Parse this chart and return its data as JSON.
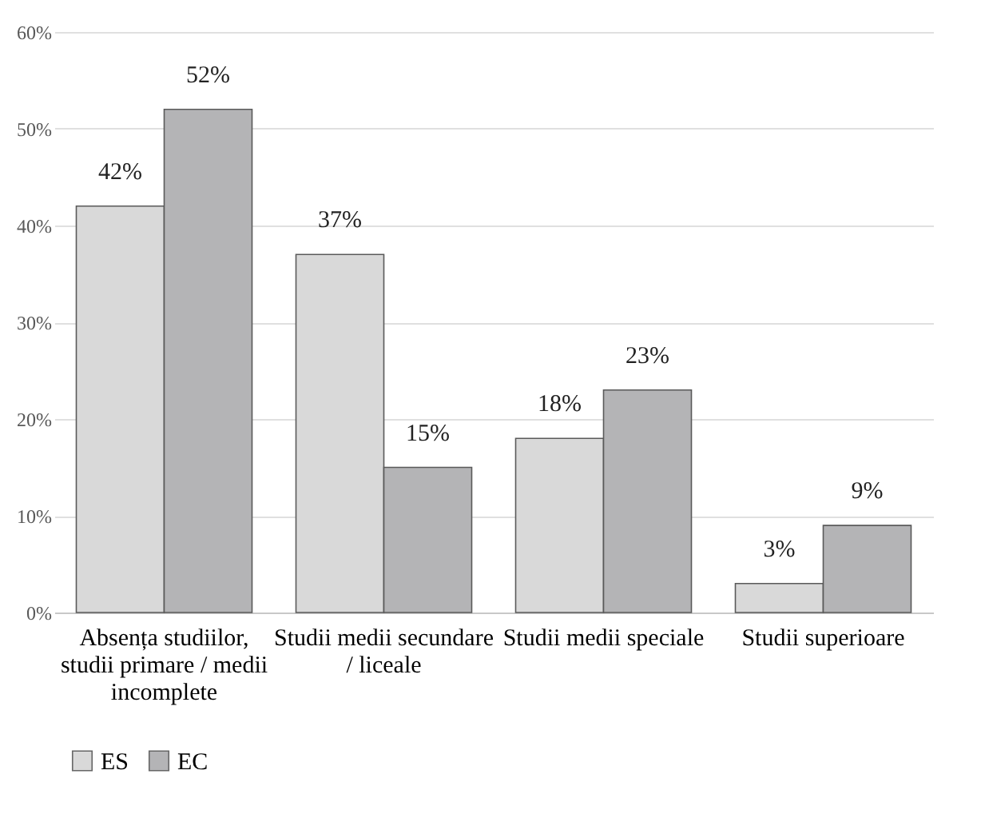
{
  "chart_data": {
    "type": "bar",
    "categories": [
      "Absența studiilor, studii primare / medii incomplete",
      "Studii medii secundare / liceale",
      "Studii medii speciale",
      "Studii superioare"
    ],
    "series": [
      {
        "name": "ES",
        "color": "#d9d9d9",
        "values": [
          42,
          37,
          18,
          3
        ],
        "value_labels": [
          "42%",
          "37%",
          "18%",
          "3%"
        ]
      },
      {
        "name": "EC",
        "color": "#b4b4b6",
        "values": [
          52,
          15,
          23,
          9
        ],
        "value_labels": [
          "52%",
          "15%",
          "23%",
          "9%"
        ]
      }
    ],
    "ylim": [
      0,
      60
    ],
    "yticks": [
      {
        "value": 0,
        "label": "0%"
      },
      {
        "value": 10,
        "label": "10%"
      },
      {
        "value": 20,
        "label": "20%"
      },
      {
        "value": 30,
        "label": "30%"
      },
      {
        "value": 40,
        "label": "40%"
      },
      {
        "value": 50,
        "label": "50%"
      },
      {
        "value": 60,
        "label": "60%"
      }
    ],
    "grid": "y",
    "legend": "bottom"
  }
}
